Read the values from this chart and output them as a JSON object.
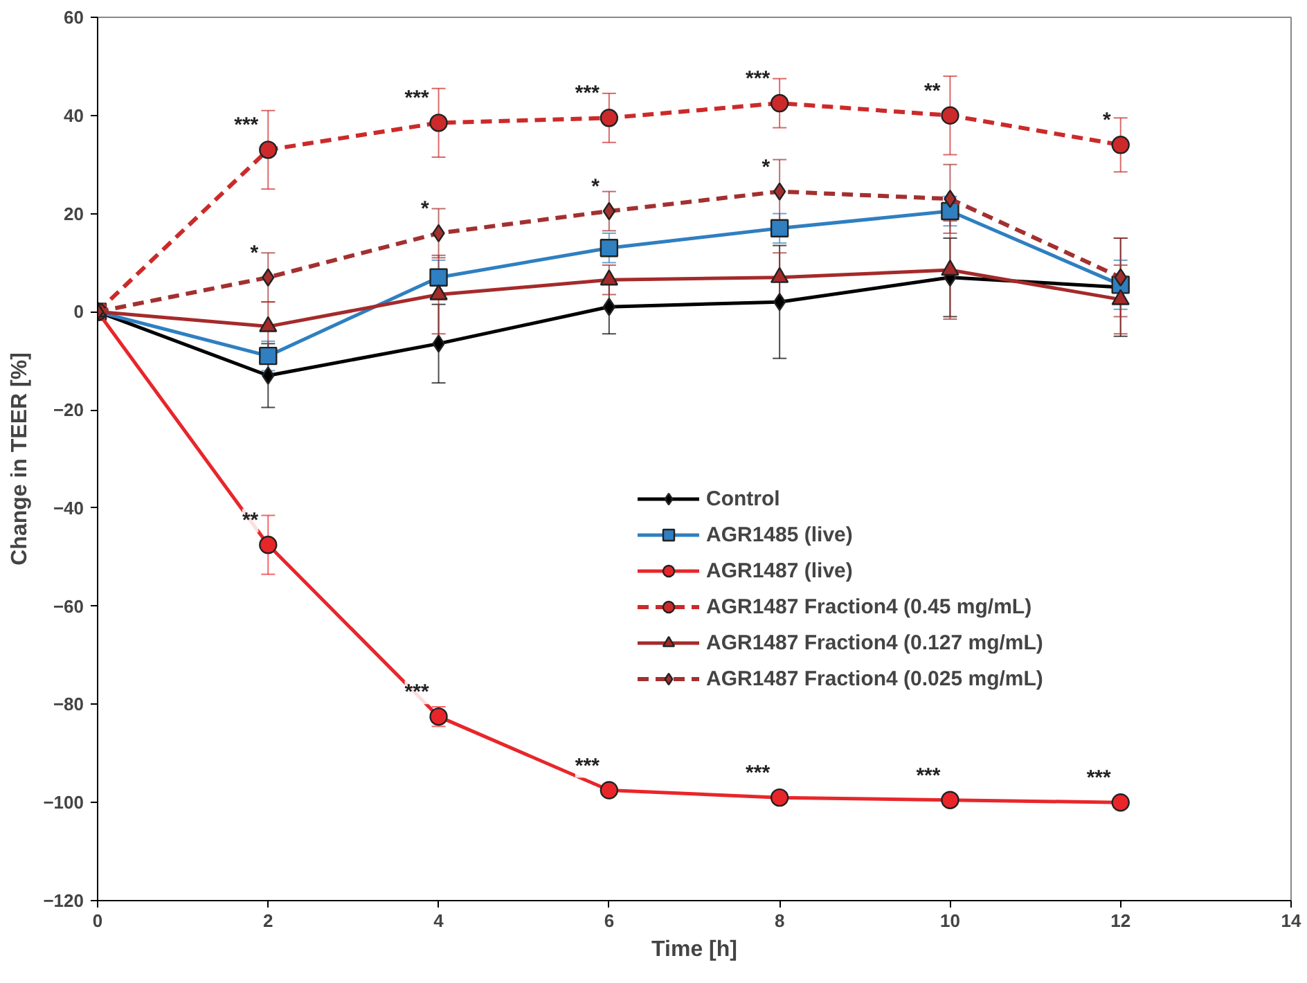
{
  "chart_data": {
    "type": "line",
    "xlabel": "Time [h]",
    "ylabel": "Change in TEER [%]",
    "x": [
      0,
      2,
      4,
      6,
      8,
      10,
      12
    ],
    "xlim": [
      0,
      14
    ],
    "xticks": [
      0,
      2,
      4,
      6,
      8,
      10,
      12,
      14
    ],
    "ylim": [
      -120,
      60
    ],
    "yticks": [
      -120,
      -100,
      -80,
      -60,
      -40,
      -20,
      0,
      20,
      40,
      60
    ],
    "grid": false,
    "legend": "right",
    "series": [
      {
        "name": "Control",
        "color": "#000000",
        "marker": "diamond",
        "line_style": "solid",
        "values": [
          0,
          -13,
          -6.5,
          1,
          2,
          7,
          5
        ],
        "errors": [
          null,
          6.5,
          8,
          5.5,
          11.5,
          8,
          10
        ]
      },
      {
        "name": "AGR1485 (live)",
        "color": "#2f7fc1",
        "marker": "square",
        "line_style": "solid",
        "values": [
          0,
          -9,
          7,
          13,
          17,
          20.5,
          5.5
        ],
        "errors": [
          null,
          3,
          3.5,
          3,
          3,
          3,
          5
        ]
      },
      {
        "name": "AGR1487 (live)",
        "color": "#e8262a",
        "marker": "circle",
        "line_style": "solid",
        "values": [
          0,
          -47.5,
          -82.5,
          -97.5,
          -99,
          -99.5,
          -100
        ],
        "errors": [
          null,
          6,
          2,
          null,
          null,
          null,
          null
        ]
      },
      {
        "name": "AGR1487 Fraction4 (0.45 mg/mL)",
        "color": "#cc2a2a",
        "marker": "circle",
        "line_style": "dashed",
        "values": [
          0,
          33,
          38.5,
          39.5,
          42.5,
          40,
          34
        ],
        "errors": [
          null,
          8,
          7,
          5,
          5,
          8,
          5.5
        ]
      },
      {
        "name": "AGR1487 Fraction4 (0.127 mg/mL)",
        "color": "#a52a2a",
        "marker": "triangle",
        "line_style": "solid",
        "values": [
          0,
          -3,
          3.5,
          6.5,
          7,
          8.5,
          2.5
        ],
        "errors": [
          null,
          5,
          8,
          3,
          5,
          10,
          7
        ]
      },
      {
        "name": "AGR1487 Fraction4 (0.025 mg/mL)",
        "color": "#a33030",
        "marker": "diamond",
        "line_style": "dashed",
        "values": [
          0,
          7,
          16,
          20.5,
          24.5,
          23,
          7
        ],
        "errors": [
          null,
          5,
          5,
          4,
          6.5,
          7,
          8
        ]
      }
    ],
    "annotations": [
      {
        "text": "***",
        "x": 2,
        "y": 33
      },
      {
        "text": "***",
        "x": 4,
        "y": 38.5
      },
      {
        "text": "***",
        "x": 6,
        "y": 39.5
      },
      {
        "text": "***",
        "x": 8,
        "y": 42.5
      },
      {
        "text": "**",
        "x": 10,
        "y": 40
      },
      {
        "text": "*",
        "x": 12,
        "y": 34
      },
      {
        "text": "*",
        "x": 2,
        "y": 7
      },
      {
        "text": "*",
        "x": 4,
        "y": 16
      },
      {
        "text": "*",
        "x": 6,
        "y": 20.5
      },
      {
        "text": "*",
        "x": 8,
        "y": 24.5
      },
      {
        "text": "**",
        "x": 2,
        "y": -47.5
      },
      {
        "text": "***",
        "x": 4,
        "y": -82.5
      },
      {
        "text": "***",
        "x": 6,
        "y": -97.5
      },
      {
        "text": "***",
        "x": 8,
        "y": -99
      },
      {
        "text": "***",
        "x": 10,
        "y": -99.5
      },
      {
        "text": "***",
        "x": 12,
        "y": -100
      }
    ]
  }
}
